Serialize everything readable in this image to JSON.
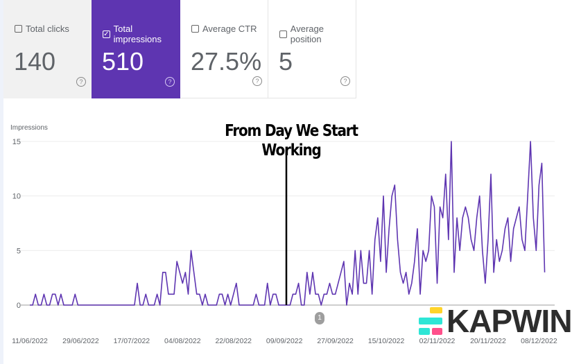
{
  "metrics": [
    {
      "label": "Total clicks",
      "value": "140",
      "checked": false,
      "help_icon": "help-circle-icon"
    },
    {
      "label": "Total impressions",
      "value": "510",
      "checked": true,
      "help_icon": "help-circle-icon"
    },
    {
      "label": "Average CTR",
      "value": "27.5%",
      "checked": false,
      "help_icon": "help-circle-icon"
    },
    {
      "label": "Average position",
      "value": "5",
      "checked": false,
      "help_icon": "help-circle-icon"
    }
  ],
  "accent_color": "#5e35b1",
  "annotation": {
    "text": "From Day We Start Working",
    "marker": "1"
  },
  "watermark": {
    "text": "KAPWING"
  },
  "chart_data": {
    "type": "line",
    "ylabel": "Impressions",
    "ylim": [
      0,
      15
    ],
    "yticks": [
      "0",
      "5",
      "10",
      "15"
    ],
    "xticks": [
      "11/06/2022",
      "29/06/2022",
      "17/07/2022",
      "04/08/2022",
      "22/08/2022",
      "09/09/2022",
      "27/09/2022",
      "15/10/2022",
      "02/11/2022",
      "20/11/2022",
      "08/12/2022"
    ],
    "x_start": "11/06/2022",
    "grid": true,
    "color": "#5e35b1",
    "series": [
      {
        "values": [
          0,
          0,
          1,
          0,
          0,
          1,
          0,
          0,
          1,
          1,
          0,
          1,
          0,
          0,
          0,
          0,
          1,
          0,
          0,
          0,
          0,
          0,
          0,
          0,
          0,
          0,
          0,
          0,
          0,
          0,
          0,
          0,
          0,
          0,
          0,
          0,
          0,
          0,
          2,
          0,
          0,
          1,
          0,
          0,
          0,
          1,
          0,
          3,
          3,
          1,
          1,
          1,
          4,
          3,
          2,
          3,
          1,
          5,
          3,
          1,
          1,
          0,
          1,
          0,
          0,
          0,
          0,
          1,
          1,
          0,
          1,
          0,
          1,
          2,
          0,
          0,
          0,
          0,
          0,
          0,
          1,
          0,
          0,
          0,
          2,
          0,
          1,
          1,
          0,
          0,
          0,
          0,
          0,
          1,
          1,
          2,
          0,
          0,
          3,
          1,
          3,
          1,
          1,
          0,
          1,
          1,
          2,
          1,
          1,
          2,
          3,
          4,
          0,
          2,
          1,
          5,
          1,
          5,
          2,
          2,
          5,
          1,
          6,
          8,
          4,
          10,
          3,
          7,
          10,
          11,
          6,
          3,
          2,
          3,
          1,
          2,
          4,
          7,
          1,
          5,
          4,
          5,
          10,
          9,
          2,
          9,
          8,
          12,
          6,
          15,
          3,
          8,
          5,
          8,
          9,
          8,
          6,
          5,
          8,
          10,
          5,
          2,
          6,
          12,
          3,
          6,
          4,
          5,
          7,
          8,
          4,
          7,
          8,
          9,
          6,
          5,
          10,
          15,
          8,
          5,
          11,
          13,
          3
        ]
      }
    ]
  }
}
